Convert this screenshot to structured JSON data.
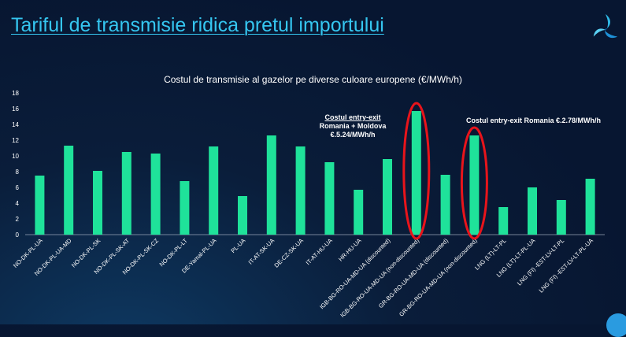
{
  "slide": {
    "title": "Tariful de transmisie ridica pretul importului"
  },
  "annotations": {
    "md_line1": "Costul entry-exit",
    "md_line2": "Romania + Moldova",
    "md_line3": "€.5.24/MWh/h",
    "ro": "Costul entry-exit  Romania €.2.78/MWh/h"
  },
  "colors": {
    "bar": "#1fe29a",
    "highlight": "#e8141b",
    "title": "#35c6f0",
    "background": "#071631"
  },
  "icons": {
    "logo": "tri-blade-logo-icon"
  },
  "chart_data": {
    "type": "bar",
    "title": "Costul de transmisie al gazelor pe diverse culoare europene (€/MWh/h)",
    "xlabel": "",
    "ylabel": "",
    "ylim": [
      0,
      18
    ],
    "yticks": [
      0,
      2,
      4,
      6,
      8,
      10,
      12,
      14,
      16,
      18
    ],
    "grid": false,
    "legend": "none",
    "categories": [
      "NO-DK-PL-UA",
      "NO-DK-PL-UA-MD",
      "NO-DK-PL-SK",
      "NO-DK-PL-SK-AT",
      "NO-DK-PL-SK-CZ",
      "NO-DK-PL-LT",
      "DE-Yamal-PL-UA",
      "PL-UA",
      "IT-AT-SK-UA",
      "DE-CZ-SK-UA",
      "IT-AT-HU-UA",
      "HR-HU-UA",
      "IGB-BG-RO-UA-MD-UA (discounted)",
      "IGB-BG-RO-UA-MD-UA (non-discounted)",
      "GR-BG-RO-UA-MD-UA (discounted)",
      "GR-BG-RO-UA-MD-UA (non-discounted)",
      "LNG (LT)-LT-PL",
      "LNG (LT)-LT-PL-UA",
      "LNG (FI) -EST-LV-LT-PL",
      "LNG (FI) -EST-LV-LT-PL-UA"
    ],
    "values": [
      7.5,
      11.3,
      8.1,
      10.5,
      10.3,
      6.8,
      11.2,
      4.9,
      12.6,
      11.2,
      9.2,
      5.7,
      9.6,
      15.7,
      7.6,
      12.6,
      3.5,
      6.0,
      4.4,
      7.1
    ],
    "highlighted": [
      13,
      15
    ]
  }
}
